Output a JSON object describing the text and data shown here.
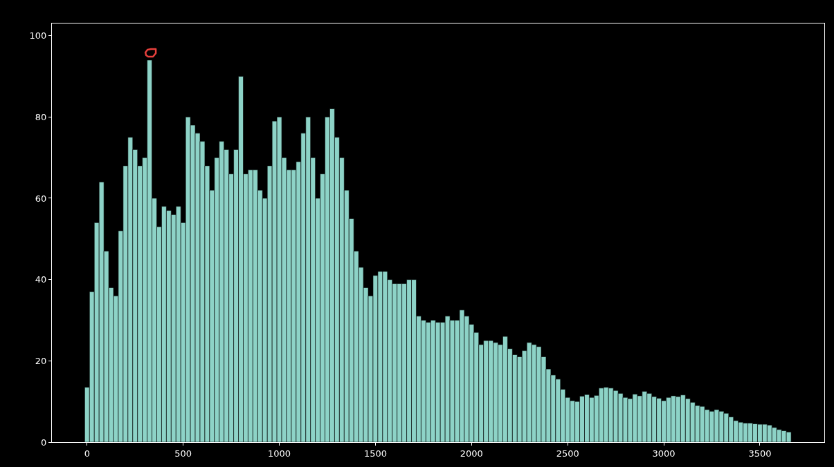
{
  "chart_data": {
    "type": "bar",
    "color": "#8dd3c7",
    "x": [
      0,
      25,
      50,
      75,
      100,
      125,
      150,
      175,
      200,
      225,
      250,
      275,
      300,
      325,
      350,
      375,
      400,
      425,
      450,
      475,
      500,
      525,
      550,
      575,
      600,
      625,
      650,
      675,
      700,
      725,
      750,
      775,
      800,
      825,
      850,
      875,
      900,
      925,
      950,
      975,
      1000,
      1025,
      1050,
      1075,
      1100,
      1125,
      1150,
      1175,
      1200,
      1225,
      1250,
      1275,
      1300,
      1325,
      1350,
      1375,
      1400,
      1425,
      1450,
      1475,
      1500,
      1525,
      1550,
      1575,
      1600,
      1625,
      1650,
      1675,
      1700,
      1725,
      1750,
      1775,
      1800,
      1825,
      1850,
      1875,
      1900,
      1925,
      1950,
      1975,
      2000,
      2025,
      2050,
      2075,
      2100,
      2125,
      2150,
      2175,
      2200,
      2225,
      2250,
      2275,
      2300,
      2325,
      2350,
      2375,
      2400,
      2425,
      2450,
      2475,
      2500,
      2525,
      2550,
      2575,
      2600,
      2625,
      2650,
      2675,
      2700,
      2725,
      2750,
      2775,
      2800,
      2825,
      2850,
      2875,
      2900,
      2925,
      2950,
      2975,
      3000,
      3025,
      3050,
      3075,
      3100,
      3125,
      3150,
      3175,
      3200,
      3225,
      3250,
      3275,
      3300,
      3325,
      3350,
      3375,
      3400,
      3425,
      3450,
      3475,
      3500,
      3525,
      3550,
      3575,
      3600,
      3625,
      3650
    ],
    "values": [
      13.5,
      37,
      54,
      64,
      47,
      38,
      36,
      52,
      68,
      75,
      72,
      68,
      70,
      94,
      60,
      53,
      58,
      57,
      56,
      58,
      54,
      80,
      78,
      76,
      74,
      68,
      62,
      70,
      74,
      72,
      66,
      72,
      90,
      66,
      67,
      67,
      62,
      60,
      68,
      79,
      80,
      70,
      67,
      67,
      69,
      76,
      80,
      70,
      60,
      66,
      80,
      82,
      75,
      70,
      62,
      55,
      47,
      43,
      38,
      36,
      41,
      42,
      42,
      40,
      39,
      39,
      39,
      40,
      40,
      31,
      30,
      29.5,
      30,
      29.5,
      29.5,
      31,
      30,
      30,
      32.5,
      31,
      29,
      27,
      24,
      25,
      25,
      24.5,
      24,
      26,
      23,
      21.5,
      21,
      22.5,
      24.5,
      24,
      23.5,
      21,
      18,
      16.5,
      15.5,
      13,
      11,
      10.2,
      10,
      11.3,
      11.7,
      11,
      11.5,
      13.3,
      13.5,
      13.3,
      12.7,
      12,
      11,
      10.7,
      11.8,
      11.4,
      12.5,
      12,
      11.2,
      10.8,
      10.2,
      11,
      11.4,
      11.2,
      11.6,
      10.7,
      9.8,
      9,
      8.8,
      8,
      7.6,
      8,
      7.6,
      7.1,
      6.2,
      5.3,
      4.9,
      4.7,
      4.7,
      4.5,
      4.4,
      4.4,
      4.2,
      3.6,
      3.1,
      2.8,
      2.5
    ],
    "xlim": [
      -183,
      3835
    ],
    "xticks": [
      0,
      500,
      1000,
      1500,
      2000,
      2500,
      3000,
      3500
    ],
    "ylim": [
      0,
      103
    ],
    "yticks": [
      0,
      20,
      40,
      60,
      80,
      100
    ]
  }
}
